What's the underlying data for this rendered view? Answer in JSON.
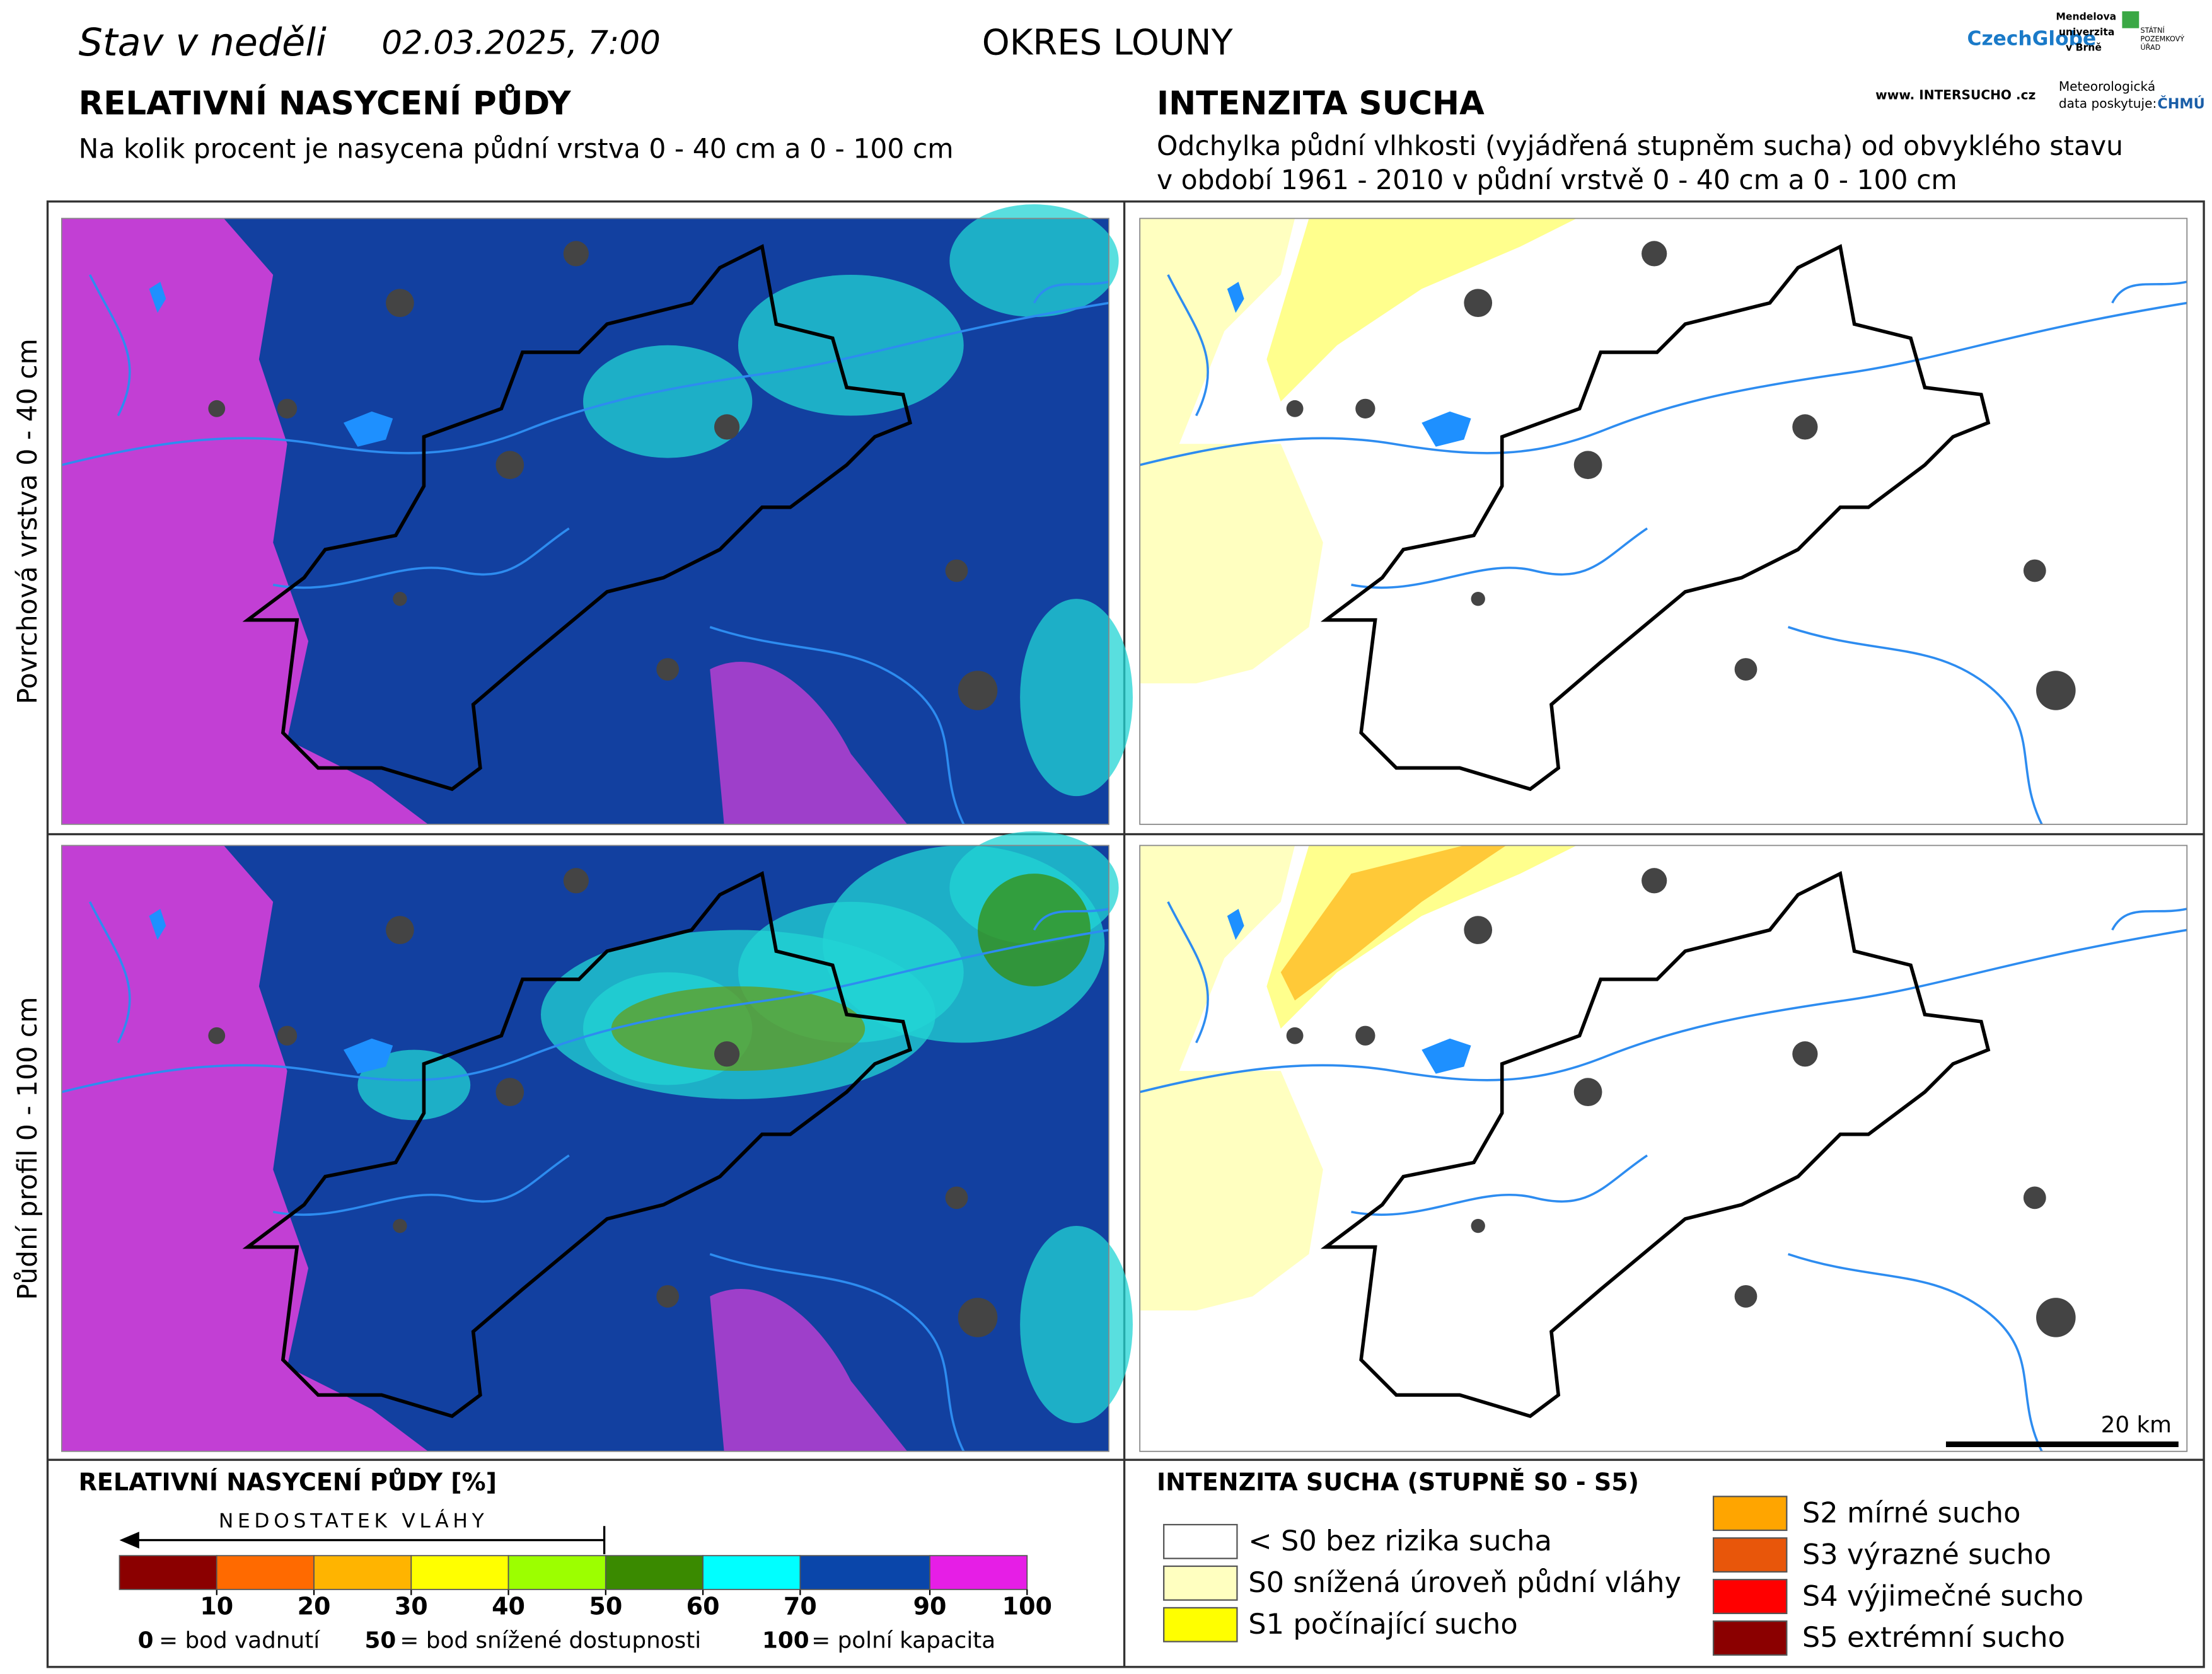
{
  "header": {
    "title": "Stav v neděli",
    "date": "02.03.2025, 7:00",
    "region": "OKRES LOUNY",
    "logos": {
      "czechglobe": "CzechGlobe",
      "mendelu": [
        "Mendelova",
        "univerzita",
        "v Brně"
      ],
      "spu": [
        "STÁTNÍ",
        "POZEMKOVÝ",
        "ÚŘAD"
      ],
      "intersucho": "www. INTERSUCHO .cz",
      "meteo": [
        "Meteorologická",
        "data poskytuje:"
      ],
      "chmu": "ČHMÚ"
    }
  },
  "left_panel": {
    "title": "RELATIVNÍ NASYCENÍ PŮDY",
    "subtitle": "Na kolik procent je nasycena půdní vrstva 0 - 40 cm a 0 - 100 cm"
  },
  "right_panel": {
    "title": "INTENZITA SUCHA",
    "subtitle": [
      "Odchylka půdní vlhkosti (vyjádřená stupněm sucha) od obvyklého stavu",
      "v období 1961 - 2010 v půdní vrstvě 0 - 40 cm a 0 - 100 cm"
    ]
  },
  "row_labels": [
    "Povrchová vrstva 0 - 40 cm",
    "Půdní profil 0 - 100 cm"
  ],
  "scale_bar": "20 km",
  "legend_saturation": {
    "title": "RELATIVNÍ NASYCENÍ PŮDY [%]",
    "arrow_label": "NEDOSTATEK VLÁHY",
    "colors": [
      "#8b0000",
      "#ff6a00",
      "#ffb400",
      "#ffff00",
      "#9cff00",
      "#3a8a00",
      "#00ffff",
      "#0a46aa",
      "#e61ee6"
    ],
    "ticks": [
      10,
      20,
      30,
      40,
      50,
      60,
      70,
      90,
      100
    ],
    "notes": [
      {
        "value": "0",
        "text": "= bod vadnutí"
      },
      {
        "value": "50",
        "text": "= bod snížené dostupnosti"
      },
      {
        "value": "100",
        "text": "= polní kapacita"
      }
    ]
  },
  "legend_drought": {
    "title": "INTENZITA SUCHA (STUPNĚ S0 - S5)",
    "items": [
      {
        "label": "< S0 bez rizika sucha",
        "color": "#ffffff"
      },
      {
        "label": "S0 snížená úroveň půdní vláhy",
        "color": "#ffffc0"
      },
      {
        "label": "S1 počínající sucho",
        "color": "#ffff00"
      },
      {
        "label": "S2 mírné sucho",
        "color": "#ffa500"
      },
      {
        "label": "S3 výrazné sucho",
        "color": "#e8560a"
      },
      {
        "label": "S4 výjimečné sucho",
        "color": "#ff0000"
      },
      {
        "label": "S5 extrémní sucho",
        "color": "#8b0000"
      }
    ]
  }
}
